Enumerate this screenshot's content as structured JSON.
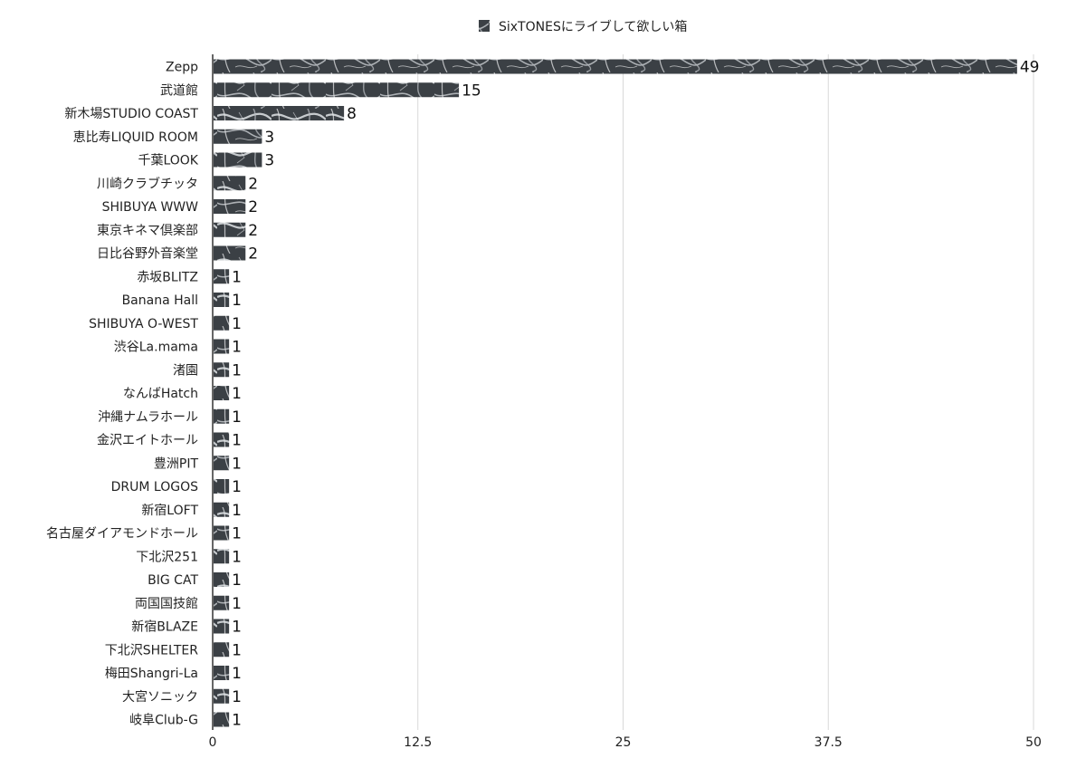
{
  "chart_data": {
    "type": "bar",
    "orientation": "horizontal",
    "title": "",
    "xlabel": "",
    "ylabel": "",
    "legend": {
      "position": "top-center",
      "entries": [
        "SixTONESにライブして欲しい箱"
      ]
    },
    "series": [
      {
        "name": "SixTONESにライブして欲しい箱",
        "color": "#3a3f44",
        "pattern": "marble"
      }
    ],
    "categories": [
      "Zepp",
      "武道館",
      "新木場STUDIO COAST",
      "恵比寿LIQUID ROOM",
      "千葉LOOK",
      "川崎クラブチッタ",
      "SHIBUYA WWW",
      "東京キネマ倶楽部",
      "日比谷野外音楽堂",
      "赤坂BLITZ",
      "Banana Hall",
      "SHIBUYA O-WEST",
      "渋谷La.mama",
      "渚園",
      "なんばHatch",
      "沖縄ナムラホール",
      "金沢エイトホール",
      "豊洲PIT",
      "DRUM LOGOS",
      "新宿LOFT",
      "名古屋ダイアモンドホール",
      "下北沢251",
      "BIG CAT",
      "両国国技館",
      "新宿BLAZE",
      "下北沢SHELTER",
      "梅田Shangri-La",
      "大宮ソニック",
      "岐阜Club-G"
    ],
    "values": [
      49,
      15,
      8,
      3,
      3,
      2,
      2,
      2,
      2,
      1,
      1,
      1,
      1,
      1,
      1,
      1,
      1,
      1,
      1,
      1,
      1,
      1,
      1,
      1,
      1,
      1,
      1,
      1,
      1
    ],
    "xlim": [
      0,
      50
    ],
    "xticks": [
      0,
      12.5,
      25,
      37.5,
      50
    ],
    "xtick_labels": [
      "0",
      "12.5",
      "25",
      "37.5",
      "50"
    ],
    "grid": {
      "vertical": true,
      "horizontal": false
    },
    "data_labels": true
  }
}
